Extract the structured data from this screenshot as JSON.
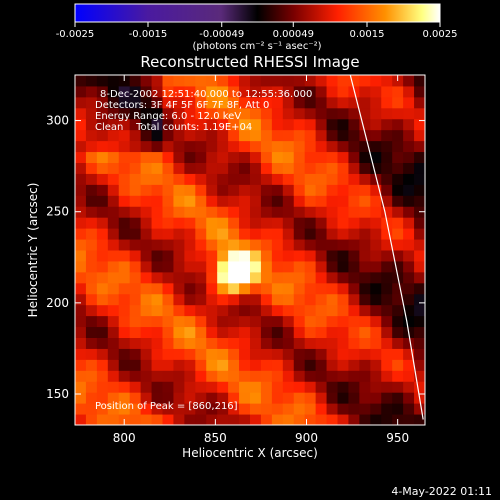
{
  "colorbar": {
    "ticks": [
      "-0.0025",
      "-0.0015",
      "-0.00049",
      "0.00049",
      "0.0015",
      "0.0025"
    ],
    "tick_values": [
      -0.0025,
      -0.0015,
      -0.00049,
      0.00049,
      0.0015,
      0.0025
    ],
    "range": [
      -0.0025,
      0.0025
    ],
    "units_label": "(photons cm⁻² s⁻¹ asec⁻²)",
    "colors": [
      "#0000ff",
      "#4a1aa0",
      "#5a2a7a",
      "#000000",
      "#7a0000",
      "#ff2000",
      "#ff9000",
      "#ffff80",
      "#ffffff"
    ]
  },
  "chart_data": {
    "type": "heatmap",
    "title": "Reconstructed RHESSI Image",
    "xlabel": "Heliocentric X (arcsec)",
    "ylabel": "Heliocentric Y (arcsec)",
    "xlim": [
      773,
      965
    ],
    "ylim": [
      133,
      325
    ],
    "x_ticks": [
      800,
      850,
      900,
      950
    ],
    "y_ticks": [
      150,
      200,
      250,
      300
    ],
    "annotations": {
      "time_range": "8-Dec-2002 12:51:40.000 to 12:55:36.000",
      "detectors": "Detectors: 3F 4F 5F 6F 7F 8F, Att 0",
      "energy": "Energy Range: 6.0 - 12.0 keV",
      "clean": "Clean    Total counts: 1.19E+04",
      "peak_position": "Position of Peak = [860,216]"
    },
    "peak": {
      "x": 860,
      "y": 216
    },
    "limb_line": [
      {
        "x": 924,
        "y": 325
      },
      {
        "x": 943,
        "y": 250
      },
      {
        "x": 955,
        "y": 190
      },
      {
        "x": 964,
        "y": 136
      }
    ]
  },
  "footer": {
    "date": "4-May-2022 01:11"
  }
}
